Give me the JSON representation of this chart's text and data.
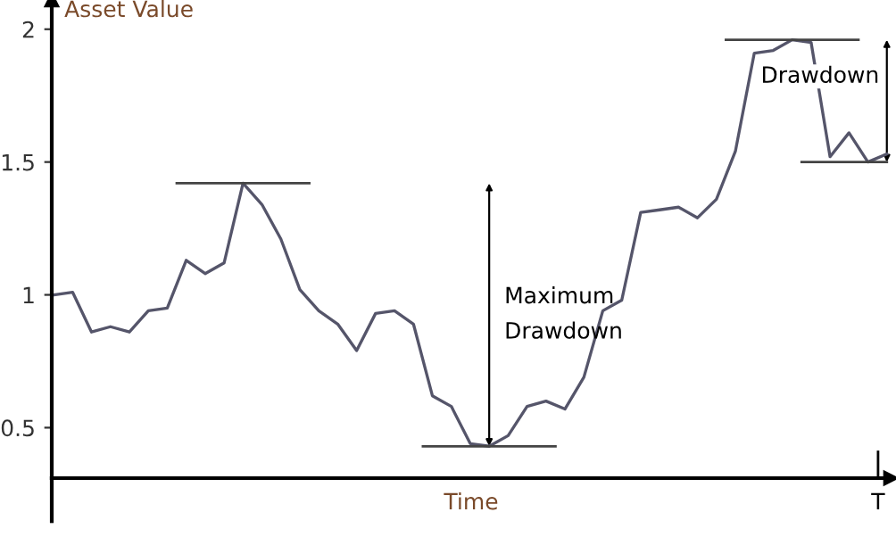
{
  "chart_data": {
    "type": "line",
    "ylabel": "Asset Value",
    "xlabel": "Time",
    "categories": [
      null,
      null,
      null,
      null,
      null,
      null,
      null,
      null,
      null,
      null,
      null,
      null,
      null,
      null,
      null,
      null,
      null,
      null,
      null,
      null,
      null,
      null,
      null,
      null,
      null,
      null,
      null,
      null,
      null,
      null,
      null,
      null,
      null,
      null,
      null,
      null,
      null,
      null,
      null,
      null,
      null,
      null,
      null,
      null,
      null
    ],
    "series": [
      {
        "color": "#55556a",
        "values": [
          1.0,
          1.01,
          0.86,
          0.88,
          0.86,
          0.94,
          0.95,
          1.13,
          1.08,
          1.12,
          1.42,
          1.34,
          1.21,
          1.02,
          0.94,
          0.89,
          0.79,
          0.93,
          0.94,
          0.89,
          0.62,
          0.58,
          0.44,
          0.43,
          0.47,
          0.58,
          0.6,
          0.57,
          0.69,
          0.94,
          0.98,
          1.31,
          1.32,
          1.33,
          1.29,
          1.36,
          1.54,
          1.91,
          1.92,
          1.96,
          1.95,
          1.52,
          1.61,
          1.5,
          1.53
        ]
      }
    ],
    "ylim": [
      0.31,
      2.11
    ],
    "yticks": [
      0.5,
      1,
      1.5,
      2
    ],
    "grid": false,
    "marker": "none",
    "line_style": "solid",
    "ref_lines": [
      {
        "axis": "y",
        "value": 1.42
      },
      {
        "axis": "y",
        "value": 0.43
      },
      {
        "axis": "y",
        "value": 1.96
      },
      {
        "axis": "y",
        "value": 1.5
      }
    ],
    "annotations": [
      "Maximum\nDrawdown",
      "Drawdown",
      "T"
    ]
  }
}
